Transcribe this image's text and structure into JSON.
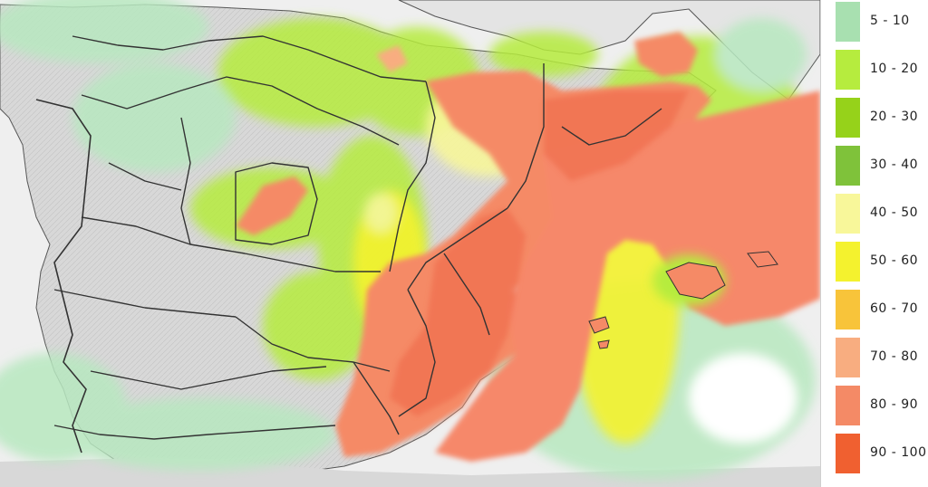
{
  "legend": {
    "items": [
      {
        "label": "5 - 10",
        "color": "#a8e0b0"
      },
      {
        "label": "10 - 20",
        "color": "#b6ec3e"
      },
      {
        "label": "20 - 30",
        "color": "#96d21a"
      },
      {
        "label": "30 - 40",
        "color": "#7fc23a"
      },
      {
        "label": "40 - 50",
        "color": "#f8f79a"
      },
      {
        "label": "50 - 60",
        "color": "#f4f22e"
      },
      {
        "label": "60 - 70",
        "color": "#f8c43a"
      },
      {
        "label": "70 - 80",
        "color": "#f8ad80"
      },
      {
        "label": "80 - 90",
        "color": "#f48a66"
      },
      {
        "label": "90 - 100",
        "color": "#f06030"
      }
    ]
  },
  "colors": {
    "sea": "#efefef",
    "land": "#dadada",
    "borders": "#444444"
  }
}
